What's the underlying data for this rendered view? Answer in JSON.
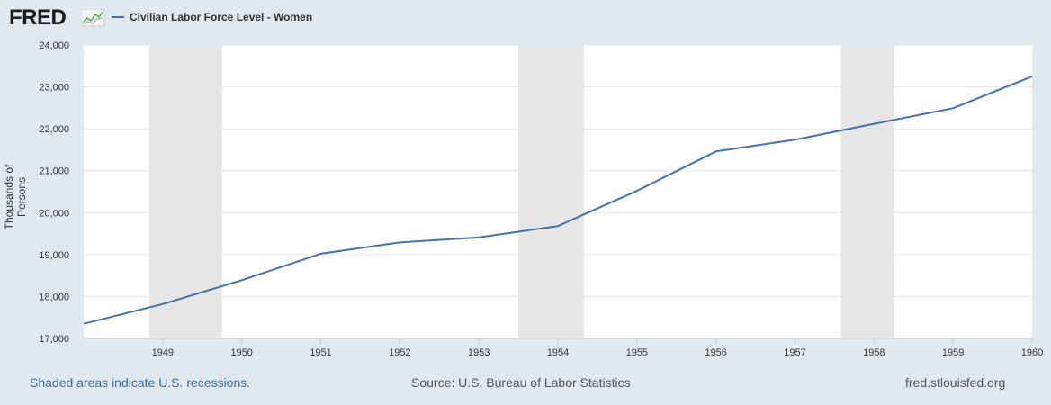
{
  "header": {
    "logo_text": "FRED",
    "series_label": "Civilian Labor Force Level - Women",
    "series_color": "#4572a7"
  },
  "footer": {
    "recession_note": "Shaded areas indicate U.S. recessions.",
    "source": "Source: U.S. Bureau of Labor Statistics",
    "site": "fred.stlouisfed.org"
  },
  "chart_data": {
    "type": "line",
    "title": "Civilian Labor Force Level - Women",
    "xlabel": "",
    "ylabel": "Thousands of Persons",
    "ylim": [
      17000,
      24000
    ],
    "yticks": [
      17000,
      18000,
      19000,
      20000,
      21000,
      22000,
      23000,
      24000
    ],
    "ytick_labels": [
      "17,000",
      "18,000",
      "19,000",
      "20,000",
      "21,000",
      "22,000",
      "23,000",
      "24,000"
    ],
    "xlim": [
      1948,
      1960
    ],
    "xticks": [
      1949,
      1950,
      1951,
      1952,
      1953,
      1954,
      1955,
      1956,
      1957,
      1958,
      1959,
      1960
    ],
    "xtick_labels": [
      "1949",
      "1950",
      "1951",
      "1952",
      "1953",
      "1954",
      "1955",
      "1956",
      "1957",
      "1958",
      "1959",
      "1960"
    ],
    "grid": true,
    "series": [
      {
        "name": "Civilian Labor Force Level - Women",
        "color": "#4572a7",
        "x": [
          1948,
          1949,
          1950,
          1951,
          1952,
          1953,
          1954,
          1955,
          1956,
          1957,
          1958,
          1959,
          1960
        ],
        "values": [
          17350,
          17820,
          18390,
          19020,
          19290,
          19410,
          19680,
          20520,
          21460,
          21740,
          22120,
          22490,
          23250
        ]
      }
    ],
    "recessions": [
      {
        "start": 1948.83,
        "end": 1949.75
      },
      {
        "start": 1953.5,
        "end": 1954.33
      },
      {
        "start": 1957.58,
        "end": 1958.25
      }
    ],
    "recession_color": "#e6e6e6"
  }
}
